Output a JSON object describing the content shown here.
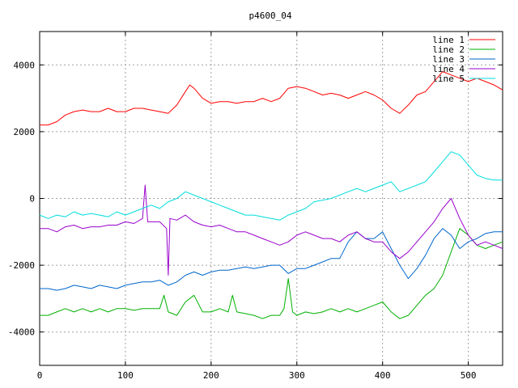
{
  "chart_data": {
    "type": "line",
    "title": "p4600_04",
    "xlabel": "",
    "ylabel": "",
    "xlim": [
      0,
      540
    ],
    "ylim": [
      -5000,
      5000
    ],
    "xticks": [
      0,
      100,
      200,
      300,
      400,
      500
    ],
    "yticks": [
      -4000,
      -2000,
      0,
      2000,
      4000
    ],
    "grid": true,
    "legend": "top-right",
    "series": [
      {
        "name": "line 1",
        "color": "#ff0000",
        "x": [
          0,
          10,
          20,
          30,
          40,
          50,
          60,
          70,
          80,
          90,
          100,
          110,
          120,
          130,
          140,
          150,
          160,
          170,
          175,
          180,
          190,
          200,
          210,
          220,
          230,
          240,
          250,
          260,
          270,
          280,
          290,
          300,
          310,
          320,
          330,
          340,
          350,
          360,
          370,
          380,
          390,
          400,
          410,
          420,
          430,
          440,
          450,
          460,
          470,
          480,
          490,
          500,
          510,
          520,
          530,
          540
        ],
        "y": [
          2200,
          2200,
          2300,
          2500,
          2600,
          2650,
          2600,
          2600,
          2700,
          2600,
          2600,
          2700,
          2700,
          2650,
          2600,
          2550,
          2800,
          3200,
          3400,
          3300,
          3000,
          2850,
          2900,
          2900,
          2850,
          2900,
          2900,
          3000,
          2900,
          3000,
          3300,
          3350,
          3300,
          3200,
          3100,
          3150,
          3100,
          3000,
          3100,
          3200,
          3100,
          2950,
          2700,
          2550,
          2800,
          3100,
          3200,
          3500,
          3800,
          3700,
          3600,
          3500,
          3600,
          3500,
          3400,
          3250
        ]
      },
      {
        "name": "line 2",
        "color": "#00b000",
        "x": [
          0,
          10,
          20,
          30,
          40,
          50,
          60,
          70,
          80,
          90,
          100,
          110,
          120,
          130,
          140,
          145,
          150,
          160,
          170,
          180,
          190,
          200,
          210,
          220,
          225,
          230,
          240,
          250,
          260,
          270,
          280,
          285,
          290,
          295,
          300,
          310,
          320,
          330,
          340,
          350,
          360,
          370,
          380,
          390,
          400,
          410,
          420,
          430,
          440,
          450,
          460,
          470,
          480,
          490,
          500,
          510,
          520,
          530,
          540
        ],
        "y": [
          -3500,
          -3500,
          -3400,
          -3300,
          -3400,
          -3300,
          -3400,
          -3300,
          -3400,
          -3300,
          -3300,
          -3350,
          -3300,
          -3300,
          -3300,
          -2900,
          -3400,
          -3500,
          -3100,
          -2900,
          -3400,
          -3400,
          -3300,
          -3400,
          -2900,
          -3400,
          -3450,
          -3500,
          -3600,
          -3500,
          -3500,
          -3300,
          -2400,
          -3400,
          -3500,
          -3400,
          -3450,
          -3400,
          -3300,
          -3400,
          -3300,
          -3400,
          -3300,
          -3200,
          -3100,
          -3400,
          -3600,
          -3500,
          -3200,
          -2900,
          -2700,
          -2300,
          -1600,
          -900,
          -1100,
          -1400,
          -1500,
          -1400,
          -1300
        ]
      },
      {
        "name": "line 3",
        "color": "#0066cc",
        "x": [
          0,
          10,
          20,
          30,
          40,
          50,
          60,
          70,
          80,
          90,
          100,
          110,
          120,
          130,
          140,
          150,
          160,
          170,
          180,
          190,
          200,
          210,
          220,
          230,
          240,
          250,
          260,
          270,
          280,
          290,
          300,
          310,
          320,
          330,
          340,
          350,
          360,
          370,
          380,
          390,
          400,
          410,
          420,
          430,
          440,
          450,
          460,
          470,
          480,
          490,
          500,
          510,
          520,
          530,
          540
        ],
        "y": [
          -2700,
          -2700,
          -2750,
          -2700,
          -2600,
          -2650,
          -2700,
          -2600,
          -2650,
          -2700,
          -2600,
          -2550,
          -2500,
          -2500,
          -2450,
          -2600,
          -2500,
          -2300,
          -2200,
          -2300,
          -2200,
          -2150,
          -2150,
          -2100,
          -2050,
          -2100,
          -2050,
          -2000,
          -2000,
          -2250,
          -2100,
          -2100,
          -2000,
          -1900,
          -1800,
          -1800,
          -1300,
          -1000,
          -1200,
          -1200,
          -1000,
          -1500,
          -2000,
          -2400,
          -2100,
          -1700,
          -1200,
          -900,
          -1100,
          -1500,
          -1300,
          -1200,
          -1050,
          -1000,
          -1000
        ]
      },
      {
        "name": "line 4",
        "color": "#9900cc",
        "x": [
          0,
          10,
          20,
          30,
          40,
          50,
          60,
          70,
          80,
          90,
          100,
          110,
          120,
          123,
          126,
          130,
          140,
          148,
          150,
          152,
          160,
          170,
          180,
          190,
          200,
          210,
          220,
          230,
          240,
          250,
          260,
          270,
          280,
          290,
          300,
          310,
          320,
          330,
          340,
          350,
          360,
          370,
          380,
          390,
          400,
          410,
          420,
          430,
          440,
          450,
          460,
          470,
          480,
          490,
          500,
          510,
          520,
          530,
          540
        ],
        "y": [
          -900,
          -900,
          -1000,
          -850,
          -800,
          -900,
          -850,
          -850,
          -800,
          -800,
          -700,
          -750,
          -600,
          400,
          -700,
          -700,
          -700,
          -900,
          -2300,
          -600,
          -650,
          -500,
          -700,
          -800,
          -850,
          -800,
          -900,
          -1000,
          -1000,
          -1100,
          -1200,
          -1300,
          -1400,
          -1300,
          -1100,
          -1000,
          -1100,
          -1200,
          -1200,
          -1300,
          -1100,
          -1000,
          -1200,
          -1300,
          -1300,
          -1600,
          -1800,
          -1600,
          -1300,
          -1000,
          -700,
          -300,
          0,
          -600,
          -1100,
          -1400,
          -1300,
          -1400,
          -1500
        ]
      },
      {
        "name": "line 5",
        "color": "#00dddd",
        "x": [
          0,
          10,
          20,
          30,
          40,
          50,
          60,
          70,
          80,
          90,
          100,
          110,
          120,
          130,
          140,
          150,
          160,
          170,
          180,
          190,
          200,
          210,
          220,
          230,
          240,
          250,
          260,
          270,
          280,
          290,
          300,
          310,
          320,
          330,
          340,
          350,
          360,
          370,
          380,
          390,
          400,
          410,
          420,
          430,
          440,
          450,
          460,
          470,
          480,
          490,
          500,
          510,
          520,
          530,
          540
        ],
        "y": [
          -500,
          -600,
          -500,
          -550,
          -400,
          -500,
          -450,
          -500,
          -550,
          -400,
          -500,
          -400,
          -300,
          -200,
          -300,
          -100,
          0,
          200,
          100,
          0,
          -100,
          -200,
          -300,
          -400,
          -500,
          -500,
          -550,
          -600,
          -650,
          -500,
          -400,
          -300,
          -100,
          -50,
          0,
          100,
          200,
          300,
          200,
          300,
          400,
          500,
          200,
          300,
          400,
          500,
          800,
          1100,
          1400,
          1300,
          1000,
          700,
          600,
          550,
          550
        ]
      }
    ]
  }
}
